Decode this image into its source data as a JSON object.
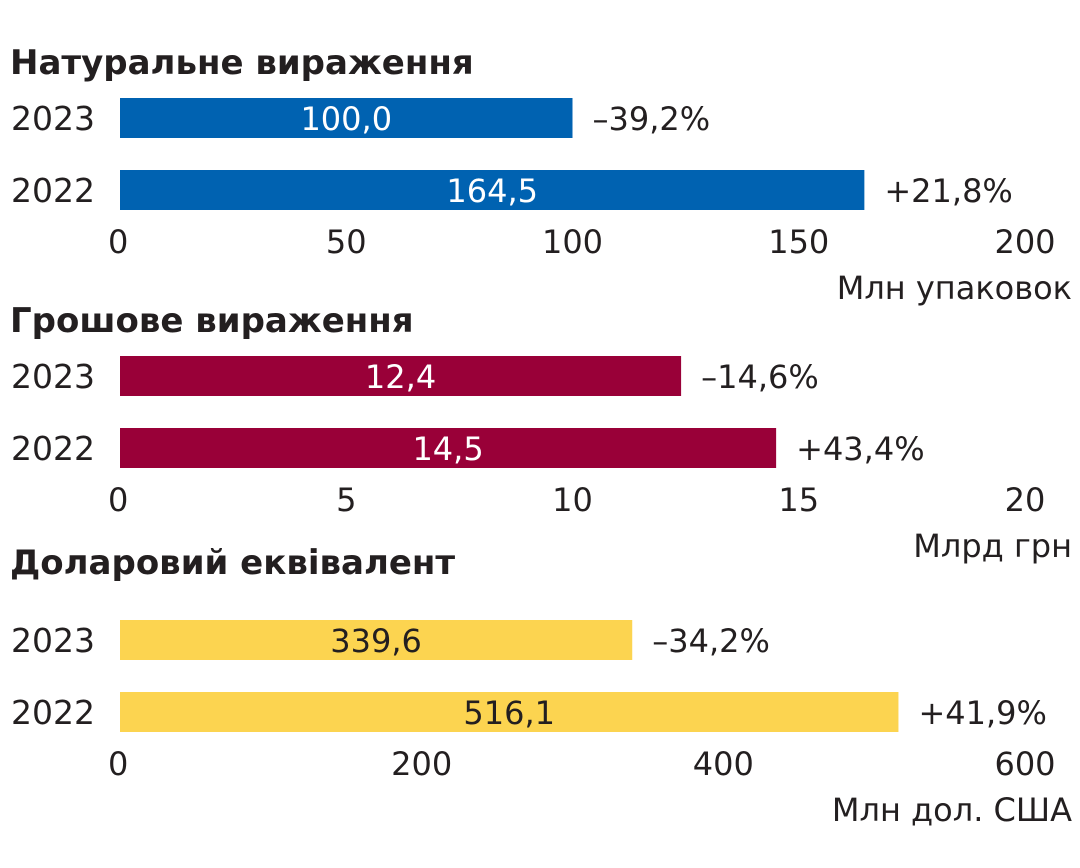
{
  "chart_data": [
    {
      "type": "bar",
      "orientation": "horizontal",
      "title": "Натуральне вираження",
      "categories": [
        "2023",
        "2022"
      ],
      "values": [
        100.0,
        164.5
      ],
      "value_labels": [
        "100,0",
        "164,5"
      ],
      "change_labels": [
        "–39,2%",
        "+21,8%"
      ],
      "xlim": [
        0,
        200
      ],
      "ticks": [
        "0",
        "50",
        "100",
        "150",
        "200"
      ],
      "xlabel": "Млн упаковок",
      "color": "#0062b1",
      "label_color": "#ffffff"
    },
    {
      "type": "bar",
      "orientation": "horizontal",
      "title": "Грошове вираження",
      "categories": [
        "2023",
        "2022"
      ],
      "values": [
        12.4,
        14.5
      ],
      "value_labels": [
        "12,4",
        "14,5"
      ],
      "change_labels": [
        "–14,6%",
        "+43,4%"
      ],
      "xlim": [
        0,
        20
      ],
      "ticks": [
        "0",
        "5",
        "10",
        "15",
        "20"
      ],
      "xlabel": "Млрд грн",
      "color": "#990038",
      "label_color": "#ffffff"
    },
    {
      "type": "bar",
      "orientation": "horizontal",
      "title": "Доларовий еквівалент",
      "categories": [
        "2023",
        "2022"
      ],
      "values": [
        339.6,
        516.1
      ],
      "value_labels": [
        "339,6",
        "516,1"
      ],
      "change_labels": [
        "–34,2%",
        "+41,9%"
      ],
      "xlim": [
        0,
        600
      ],
      "ticks": [
        "0",
        "200",
        "400",
        "600"
      ],
      "xlabel": "Млн дол. США",
      "color": "#fcd450",
      "label_color": "#231f20"
    }
  ]
}
